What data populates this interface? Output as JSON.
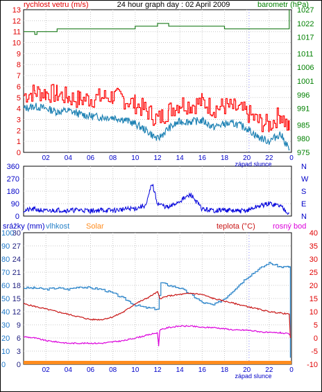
{
  "header": {
    "left_label": "rychlost vetru (m/s)",
    "title": "24 hour graph day : 02 April 2009",
    "right_label": "barometr (hPa)"
  },
  "x_axis": {
    "ticks": [
      "02",
      "04",
      "06",
      "08",
      "10",
      "12",
      "14",
      "16",
      "18",
      "20",
      "22",
      "0"
    ],
    "sunset_label": "západ slunce"
  },
  "colors": {
    "frame": "#000000",
    "grid": "#c8c8c8",
    "wind_axis": "#e00000",
    "baro_axis": "#008000",
    "dir_axis": "#0000c8",
    "rain_axis": "#1e78c8",
    "temp_axis": "#e00000",
    "gust": "#ff0000",
    "speed": "#1e82b4",
    "pressure": "#1e7d1e",
    "direction": "#0000dc",
    "humidity": "#2882c8",
    "temperature": "#c81414",
    "dewpoint": "#dc00dc",
    "solar": "#ff8c1e"
  },
  "chart_data": [
    {
      "type": "line",
      "title": "24 hour graph day : 02 April 2009",
      "x_hours_range": [
        0,
        24
      ],
      "left_axis": {
        "label": "rychlost vetru (m/s)",
        "ylim": [
          0,
          13
        ],
        "ticks": [
          0,
          1,
          2,
          3,
          4,
          5,
          6,
          7,
          8,
          9,
          10,
          11,
          12,
          13
        ]
      },
      "right_axis": {
        "label": "barometr (hPa)",
        "ylim": [
          975,
          1027
        ],
        "ticks": [
          975,
          980,
          985,
          991,
          996,
          1001,
          1006,
          1011,
          1017,
          1022,
          1027
        ]
      },
      "series": [
        {
          "name": "gust",
          "axis": "left",
          "points": [
            [
              0,
              5.2
            ],
            [
              1,
              5.5
            ],
            [
              2,
              5.4
            ],
            [
              3,
              5.3
            ],
            [
              4,
              5.0
            ],
            [
              5,
              4.8
            ],
            [
              6,
              4.9
            ],
            [
              7,
              5.0
            ],
            [
              8,
              5.1
            ],
            [
              9,
              4.8
            ],
            [
              10,
              4.4
            ],
            [
              11,
              3.8
            ],
            [
              12,
              3.0
            ],
            [
              13,
              3.8
            ],
            [
              14,
              4.5
            ],
            [
              15,
              4.3
            ],
            [
              16,
              4.6
            ],
            [
              17,
              4.0
            ],
            [
              18,
              4.2
            ],
            [
              19,
              4.0
            ],
            [
              20,
              3.6
            ],
            [
              21,
              2.8
            ],
            [
              22,
              2.5
            ],
            [
              23,
              3.5
            ],
            [
              23.8,
              2.0
            ]
          ]
        },
        {
          "name": "speed",
          "axis": "left",
          "points": [
            [
              0,
              4.0
            ],
            [
              1,
              4.2
            ],
            [
              2,
              4.0
            ],
            [
              3,
              3.7
            ],
            [
              4,
              3.8
            ],
            [
              5,
              3.5
            ],
            [
              6,
              3.3
            ],
            [
              7,
              3.2
            ],
            [
              8,
              3.2
            ],
            [
              9,
              3.0
            ],
            [
              10,
              2.6
            ],
            [
              11,
              2.0
            ],
            [
              12,
              1.2
            ],
            [
              13,
              2.2
            ],
            [
              14,
              2.8
            ],
            [
              15,
              2.8
            ],
            [
              16,
              2.9
            ],
            [
              17,
              2.3
            ],
            [
              18,
              2.6
            ],
            [
              19,
              2.6
            ],
            [
              20,
              2.2
            ],
            [
              21,
              1.4
            ],
            [
              22,
              1.0
            ],
            [
              23,
              1.7
            ],
            [
              23.8,
              0.3
            ]
          ]
        },
        {
          "name": "pressure",
          "axis": "right",
          "points": [
            [
              0,
              1019
            ],
            [
              1,
              1018
            ],
            [
              1.2,
              1019
            ],
            [
              2,
              1019
            ],
            [
              3,
              1020
            ],
            [
              4,
              1020
            ],
            [
              6,
              1020
            ],
            [
              9,
              1020
            ],
            [
              10,
              1021
            ],
            [
              11,
              1021
            ],
            [
              12,
              1022
            ],
            [
              13,
              1021
            ],
            [
              14,
              1021
            ],
            [
              15,
              1021
            ],
            [
              18,
              1020
            ],
            [
              20,
              1020
            ],
            [
              23,
              1020
            ],
            [
              23.8,
              1027
            ]
          ]
        }
      ]
    },
    {
      "type": "line",
      "left_axis": {
        "ylim": [
          0,
          360
        ],
        "ticks": [
          0,
          90,
          180,
          270,
          360
        ]
      },
      "right_axis": {
        "ticks": [
          "N",
          "W",
          "S",
          "E",
          "N"
        ]
      },
      "series": [
        {
          "name": "wind direction",
          "points": [
            [
              0,
              40
            ],
            [
              1,
              50
            ],
            [
              2,
              35
            ],
            [
              3,
              45
            ],
            [
              4,
              40
            ],
            [
              5,
              45
            ],
            [
              6,
              38
            ],
            [
              7,
              44
            ],
            [
              8,
              40
            ],
            [
              9,
              50
            ],
            [
              10,
              55
            ],
            [
              11,
              80
            ],
            [
              11.5,
              240
            ],
            [
              12,
              90
            ],
            [
              13,
              60
            ],
            [
              14,
              110
            ],
            [
              15,
              155
            ],
            [
              16,
              50
            ],
            [
              17,
              40
            ],
            [
              18,
              45
            ],
            [
              19,
              35
            ],
            [
              20,
              40
            ],
            [
              21,
              70
            ],
            [
              22,
              90
            ],
            [
              23,
              75
            ],
            [
              23.8,
              20
            ]
          ]
        }
      ]
    },
    {
      "type": "line",
      "left_axis_rain": {
        "ylim": [
          0,
          30
        ],
        "ticks": [
          0,
          3,
          6,
          9,
          12,
          15,
          18,
          21,
          24,
          27,
          30
        ]
      },
      "left_axis_humidity": {
        "ylim": [
          0,
          100
        ],
        "ticks": [
          0,
          10,
          20,
          30,
          40,
          50,
          60,
          70,
          80,
          90,
          100
        ]
      },
      "right_axis": {
        "ylim": [
          -10,
          40
        ],
        "ticks": [
          -10,
          -5,
          0,
          5,
          10,
          15,
          20,
          25,
          30,
          35,
          40
        ]
      },
      "legend": [
        {
          "label": "srážky (mm)",
          "color_key": "direction"
        },
        {
          "label": "vlhkost",
          "color_key": "humidity"
        },
        {
          "label": "Solar",
          "color_key": "solar"
        },
        {
          "label": "teplota (°C)",
          "color_key": "temperature"
        },
        {
          "label": "rosný bod",
          "color_key": "dewpoint"
        }
      ],
      "series": [
        {
          "name": "vlhkost",
          "axis": "left-humidity",
          "points": [
            [
              0,
              58
            ],
            [
              1,
              58
            ],
            [
              2,
              57
            ],
            [
              3,
              58
            ],
            [
              4,
              57
            ],
            [
              5,
              59
            ],
            [
              6,
              58
            ],
            [
              7,
              57
            ],
            [
              8,
              54
            ],
            [
              9,
              50
            ],
            [
              10,
              45
            ],
            [
              11,
              43
            ],
            [
              12,
              42
            ],
            [
              12.3,
              62
            ],
            [
              13,
              60
            ],
            [
              14,
              58
            ],
            [
              15,
              53
            ],
            [
              16,
              47
            ],
            [
              17,
              45
            ],
            [
              18,
              50
            ],
            [
              19,
              58
            ],
            [
              20,
              66
            ],
            [
              21,
              72
            ],
            [
              22,
              77
            ],
            [
              23,
              74
            ],
            [
              23.8,
              74
            ],
            [
              23.9,
              5
            ]
          ]
        },
        {
          "name": "teplota",
          "axis": "right",
          "points": [
            [
              0,
              13
            ],
            [
              1,
              12
            ],
            [
              2,
              11
            ],
            [
              3,
              10
            ],
            [
              4,
              9
            ],
            [
              5,
              8
            ],
            [
              6,
              7
            ],
            [
              7,
              7
            ],
            [
              8,
              8
            ],
            [
              9,
              10
            ],
            [
              10,
              13
            ],
            [
              11,
              15
            ],
            [
              12,
              17.5
            ],
            [
              12.2,
              15
            ],
            [
              13,
              16
            ],
            [
              14,
              16.5
            ],
            [
              15,
              17
            ],
            [
              16,
              16.5
            ],
            [
              17,
              15
            ],
            [
              18,
              14
            ],
            [
              19,
              13
            ],
            [
              20,
              12
            ],
            [
              21,
              11
            ],
            [
              22,
              10
            ],
            [
              23,
              9.5
            ],
            [
              23.8,
              9
            ],
            [
              23.9,
              0
            ]
          ]
        },
        {
          "name": "rosný bod",
          "axis": "right",
          "points": [
            [
              0,
              0.5
            ],
            [
              1,
              0
            ],
            [
              2,
              -1
            ],
            [
              3,
              -1.5
            ],
            [
              4,
              -2
            ],
            [
              5,
              -2
            ],
            [
              6,
              -2
            ],
            [
              7,
              -2
            ],
            [
              8,
              -1.5
            ],
            [
              9,
              -1
            ],
            [
              10,
              0
            ],
            [
              11,
              1
            ],
            [
              12,
              2
            ],
            [
              12.1,
              -3
            ],
            [
              12.2,
              3
            ],
            [
              13,
              4
            ],
            [
              14,
              4.5
            ],
            [
              15,
              4.5
            ],
            [
              16,
              4
            ],
            [
              17,
              4
            ],
            [
              18,
              3.5
            ],
            [
              19,
              3
            ],
            [
              20,
              3
            ],
            [
              21,
              2.5
            ],
            [
              22,
              2
            ],
            [
              23,
              2
            ],
            [
              23.8,
              1.5
            ]
          ]
        },
        {
          "name": "Solar",
          "axis": "left-humidity",
          "points": [
            [
              0,
              0
            ],
            [
              24,
              0
            ]
          ]
        }
      ]
    }
  ]
}
